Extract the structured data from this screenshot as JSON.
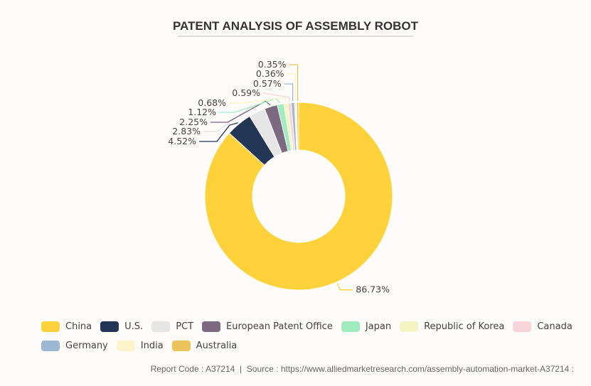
{
  "chart_data": {
    "type": "pie",
    "variant": "donut",
    "title": "PATENT ANALYSIS OF ASSEMBLY ROBOT",
    "unit": "%",
    "categories": [
      "China",
      "U.S.",
      "PCT",
      "European Patent Office",
      "Japan",
      "Republic of Korea",
      "Canada",
      "Germany",
      "India",
      "Australia"
    ],
    "values": [
      86.73,
      4.52,
      2.83,
      2.25,
      1.12,
      0.68,
      0.59,
      0.57,
      0.36,
      0.35
    ],
    "labels": [
      "86.73%",
      "4.52%",
      "2.83%",
      "2.25%",
      "1.12%",
      "0.68%",
      "0.59%",
      "0.57%",
      "0.36%",
      "0.35%"
    ],
    "colors": [
      "#fdd23b",
      "#243656",
      "#e6e6e6",
      "#7b6a80",
      "#a0ecbf",
      "#f6f5c4",
      "#f8d5d8",
      "#9db8d0",
      "#fff3cc",
      "#ebc35a"
    ],
    "legend_position": "bottom",
    "start": "top",
    "direction": "clockwise"
  },
  "footer": {
    "text": "Report Code : A37214  |  Source : https://www.alliedmarketresearch.com/assembly-automation-market-A37214 :"
  }
}
